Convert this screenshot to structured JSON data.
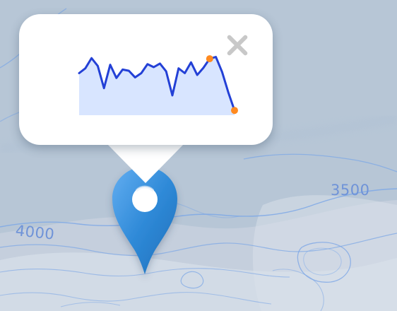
{
  "map": {
    "contour_labels": [
      "3500",
      "4000"
    ],
    "colors": {
      "background": "#b7c6d6",
      "contour_line": "#7ea8e6",
      "marker_blue": "#2f8ad8",
      "sparkline_line": "#2340d6",
      "sparkline_fill": "#d8e5ff",
      "sparkline_marker": "#ff8a1f",
      "popup_background": "#ffffff",
      "close_icon": "#c8c8c8"
    }
  },
  "marker": {
    "icon": "map-pin-icon"
  },
  "popup": {
    "close_icon": "close-icon"
  },
  "chart_data": {
    "type": "area",
    "x": [
      0,
      1,
      2,
      3,
      4,
      5,
      6,
      7,
      8,
      9,
      10,
      11,
      12,
      13,
      14,
      15,
      16,
      17,
      18,
      19,
      20,
      21,
      22,
      23,
      24,
      25
    ],
    "values": [
      0.7,
      0.78,
      0.95,
      0.82,
      0.45,
      0.84,
      0.62,
      0.76,
      0.74,
      0.63,
      0.7,
      0.85,
      0.8,
      0.86,
      0.73,
      0.33,
      0.78,
      0.7,
      0.88,
      0.67,
      0.79,
      0.94,
      0.97,
      0.72,
      0.38,
      0.08
    ],
    "ylim": [
      0,
      1
    ],
    "highlight_indices": [
      21,
      25
    ]
  }
}
